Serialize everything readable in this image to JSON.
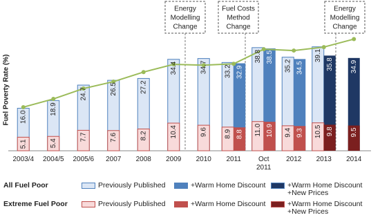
{
  "chart_data": {
    "type": "bar",
    "y_label": "Fuel Poverty Rate (%)",
    "categories": [
      "2003/4",
      "2004/5",
      "2005/6",
      "2007",
      "2008",
      "2009",
      "2010",
      "2011",
      "Oct 2011",
      "2012",
      "2013",
      "2014"
    ],
    "ylim": [
      0,
      45
    ],
    "groups": [
      {
        "name": "All Fuel Poor",
        "series": [
          {
            "name": "Previously Published",
            "color": "#dbe6f5",
            "values": [
              16.0,
              18.9,
              24.7,
              26.5,
              27.2,
              34.4,
              34.7,
              33.2,
              38.8,
              35.2,
              39.1,
              null
            ],
            "value_labels": [
              "16.0",
              "18.9",
              "24.7",
              "26.5",
              "27.2",
              "34.4",
              "34.7",
              "33.2",
              "38.8",
              "35.2",
              "39.1",
              null
            ]
          },
          {
            "name": "+Warm Home Discount",
            "color": "#4f81bd",
            "values": [
              null,
              null,
              null,
              null,
              null,
              null,
              null,
              32.9,
              38.5,
              34.5,
              null,
              null
            ],
            "value_labels": [
              null,
              null,
              null,
              null,
              null,
              null,
              null,
              "32.9",
              "38.5",
              "34.5",
              null,
              null
            ]
          },
          {
            "name": "+Warm Home Discount +New Prices",
            "color": "#1f3864",
            "values": [
              null,
              null,
              null,
              null,
              null,
              null,
              null,
              null,
              null,
              null,
              35.8,
              34.9
            ],
            "value_labels": [
              null,
              null,
              null,
              null,
              null,
              null,
              null,
              null,
              null,
              null,
              "35.8",
              "34.9"
            ]
          }
        ]
      },
      {
        "name": "Extreme Fuel Poor",
        "series": [
          {
            "name": "Previously Published",
            "color": "#f8dada",
            "values": [
              5.1,
              5.4,
              7.7,
              7.6,
              8.2,
              10.4,
              9.6,
              8.9,
              11.0,
              9.4,
              10.5,
              null
            ],
            "value_labels": [
              "5.1",
              "5.4",
              "7.7",
              "7.6",
              "8.2",
              "10.4",
              "9.6",
              "8.9",
              "11.0",
              "9.4",
              "10.5",
              null
            ]
          },
          {
            "name": "+Warm Home Discount",
            "color": "#c0504d",
            "values": [
              null,
              null,
              null,
              null,
              null,
              null,
              null,
              8.8,
              10.9,
              9.3,
              null,
              null
            ],
            "value_labels": [
              null,
              null,
              null,
              null,
              null,
              null,
              null,
              "8.8",
              "10.9",
              "9.3",
              null,
              null
            ]
          },
          {
            "name": "+Warm Home Discount +New Prices",
            "color": "#7b1f1f",
            "values": [
              null,
              null,
              null,
              null,
              null,
              null,
              null,
              null,
              null,
              null,
              9.8,
              9.5
            ],
            "value_labels": [
              null,
              null,
              null,
              null,
              null,
              null,
              null,
              null,
              null,
              null,
              "9.8",
              "9.5"
            ]
          }
        ]
      }
    ],
    "line": {
      "color": "#9bbb59",
      "values": [
        16.4,
        19.5,
        23.4,
        26.0,
        29.6,
        32.5,
        32.2,
        32.7,
        38.2,
        37.7,
        39.0,
        42.0
      ]
    },
    "annotations": [
      [
        "Energy",
        "Modelling",
        "Change"
      ],
      [
        "Fuel Costs",
        "Method",
        "Change"
      ],
      [
        "Energy",
        "Modelling",
        "Change"
      ]
    ]
  }
}
